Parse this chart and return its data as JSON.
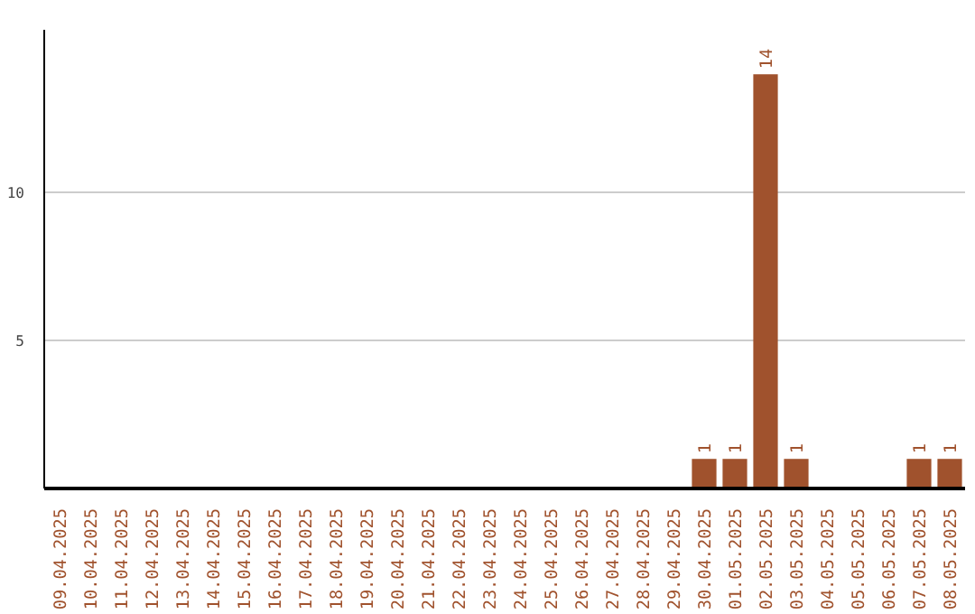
{
  "chart_data": {
    "type": "bar",
    "categories": [
      "09.04.2025",
      "10.04.2025",
      "11.04.2025",
      "12.04.2025",
      "13.04.2025",
      "14.04.2025",
      "15.04.2025",
      "16.04.2025",
      "17.04.2025",
      "18.04.2025",
      "19.04.2025",
      "20.04.2025",
      "21.04.2025",
      "22.04.2025",
      "23.04.2025",
      "24.04.2025",
      "25.04.2025",
      "26.04.2025",
      "27.04.2025",
      "28.04.2025",
      "29.04.2025",
      "30.04.2025",
      "01.05.2025",
      "02.05.2025",
      "03.05.2025",
      "04.05.2025",
      "05.05.2025",
      "06.05.2025",
      "07.05.2025",
      "08.05.2025"
    ],
    "values": [
      0,
      0,
      0,
      0,
      0,
      0,
      0,
      0,
      0,
      0,
      0,
      0,
      0,
      0,
      0,
      0,
      0,
      0,
      0,
      0,
      0,
      1,
      1,
      14,
      1,
      0,
      0,
      0,
      1,
      1
    ],
    "value_labels": [
      null,
      null,
      null,
      null,
      null,
      null,
      null,
      null,
      null,
      null,
      null,
      null,
      null,
      null,
      null,
      null,
      null,
      null,
      null,
      null,
      null,
      "1",
      "1",
      "14",
      "1",
      null,
      null,
      null,
      "1",
      "1"
    ],
    "color": "#a0522d",
    "ylim": [
      0,
      15.5
    ],
    "yticks": [
      5,
      10
    ],
    "grid": "y"
  }
}
